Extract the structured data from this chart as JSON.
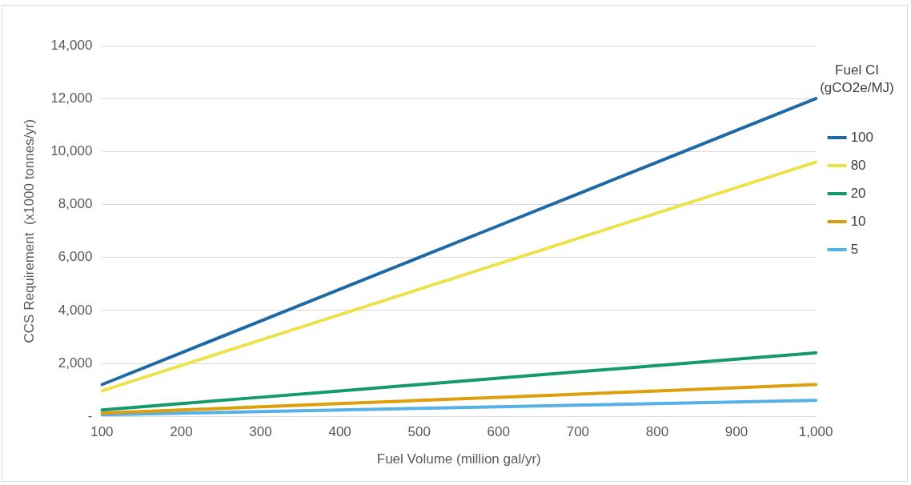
{
  "chart_data": {
    "type": "line",
    "xlabel": "Fuel Volume (million gal/yr)",
    "ylabel": "CCS Requirement  (x1000 tonnes/yr)",
    "legend_title": "Fuel CI (gCO2e/MJ)",
    "categories": [
      "100",
      "200",
      "300",
      "400",
      "500",
      "600",
      "700",
      "800",
      "900",
      "1,000"
    ],
    "ylim": [
      0,
      14000
    ],
    "yticks": [
      {
        "value": 0,
        "label": "-"
      },
      {
        "value": 2000,
        "label": "2,000"
      },
      {
        "value": 4000,
        "label": "4,000"
      },
      {
        "value": 6000,
        "label": "6,000"
      },
      {
        "value": 8000,
        "label": "8,000"
      },
      {
        "value": 10000,
        "label": "10,000"
      },
      {
        "value": 12000,
        "label": "12,000"
      },
      {
        "value": 14000,
        "label": "14,000"
      }
    ],
    "grid": "y",
    "legend": "right",
    "marker": "none",
    "line_style": "solid",
    "series": [
      {
        "name": "100",
        "color": "#1f6aa5",
        "values": [
          1200,
          2400,
          3600,
          4800,
          6000,
          7200,
          8400,
          9600,
          10800,
          12000
        ]
      },
      {
        "name": "80",
        "color": "#ede24c",
        "values": [
          960,
          1920,
          2880,
          3840,
          4800,
          5760,
          6720,
          7680,
          8640,
          9600
        ]
      },
      {
        "name": "20",
        "color": "#159a6b",
        "values": [
          240,
          480,
          720,
          960,
          1200,
          1440,
          1680,
          1920,
          2160,
          2400
        ]
      },
      {
        "name": "10",
        "color": "#de9f0f",
        "values": [
          120,
          240,
          360,
          480,
          600,
          720,
          840,
          960,
          1080,
          1200
        ]
      },
      {
        "name": "5",
        "color": "#56b1e6",
        "values": [
          60,
          120,
          180,
          240,
          300,
          360,
          420,
          480,
          540,
          600
        ]
      }
    ]
  }
}
